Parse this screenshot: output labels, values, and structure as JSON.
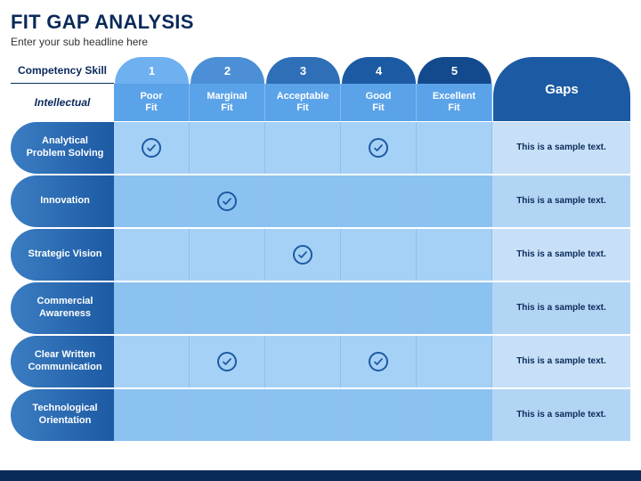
{
  "title": "FIT GAP ANALYSIS",
  "subtitle": "Enter your sub headline here",
  "labels": {
    "competency": "Competency Skill",
    "intellectual": "Intellectual",
    "gaps": "Gaps"
  },
  "colors": {
    "tab_gradient": [
      "#6eb0f0",
      "#4c8fd6",
      "#2e6fb8",
      "#1c5aa3",
      "#134a8e"
    ],
    "fit_header_bg": "#5ba3e8",
    "gaps_bg": "#1c5aa3",
    "row_label_gradient": [
      "#3b7dc2",
      "#1c5aa3"
    ],
    "cell_light": "#a6d1f6",
    "cell_dark": "#8cc2f0",
    "gaps_light": "#c7e0f8",
    "gaps_dark": "#b3d5f4",
    "check_color": "#1c5aa3",
    "title_color": "#0a2a5a",
    "footer": "#0a2a5a"
  },
  "columns": [
    {
      "num": "1",
      "label": "Poor Fit"
    },
    {
      "num": "2",
      "label": "Marginal Fit"
    },
    {
      "num": "3",
      "label": "Acceptable Fit"
    },
    {
      "num": "4",
      "label": "Good Fit"
    },
    {
      "num": "5",
      "label": "Excellent Fit"
    }
  ],
  "rows": [
    {
      "label": "Analytical Problem Solving",
      "checks": [
        true,
        false,
        false,
        true,
        false
      ],
      "gaps": "This is a sample text."
    },
    {
      "label": "Innovation",
      "checks": [
        false,
        true,
        false,
        false,
        false
      ],
      "gaps": "This is a sample text."
    },
    {
      "label": "Strategic Vision",
      "checks": [
        false,
        false,
        true,
        false,
        false
      ],
      "gaps": "This is a sample text."
    },
    {
      "label": "Commercial Awareness",
      "checks": [
        false,
        false,
        false,
        false,
        false
      ],
      "gaps": "This is a sample text."
    },
    {
      "label": "Clear Written Communication",
      "checks": [
        false,
        true,
        false,
        true,
        false
      ],
      "gaps": "This is a sample text."
    },
    {
      "label": "Technological Orientation",
      "checks": [
        false,
        false,
        false,
        false,
        false
      ],
      "gaps": "This is a sample text."
    }
  ]
}
